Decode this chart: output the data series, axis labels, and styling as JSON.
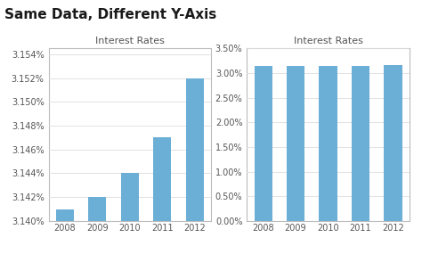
{
  "title": "Same Data, Different Y-Axis",
  "subtitle": "Interest Rates",
  "years": [
    "2008",
    "2009",
    "2010",
    "2011",
    "2012"
  ],
  "values": [
    3.141,
    3.142,
    3.144,
    3.147,
    3.152
  ],
  "bar_color": "#6BAED6",
  "left_ylim": [
    3.14,
    3.1545
  ],
  "left_yticks": [
    3.14,
    3.142,
    3.144,
    3.146,
    3.148,
    3.15,
    3.152,
    3.154
  ],
  "right_ylim": [
    0.0,
    3.5
  ],
  "right_yticks": [
    0.0,
    0.5,
    1.0,
    1.5,
    2.0,
    2.5,
    3.0,
    3.5
  ],
  "background_color": "#FFFFFF",
  "panel_bg": "#FFFFFF",
  "border_color": "#BBBBBB",
  "grid_color": "#DDDDDD",
  "title_fontsize": 11,
  "subtitle_fontsize": 8,
  "tick_fontsize": 7
}
